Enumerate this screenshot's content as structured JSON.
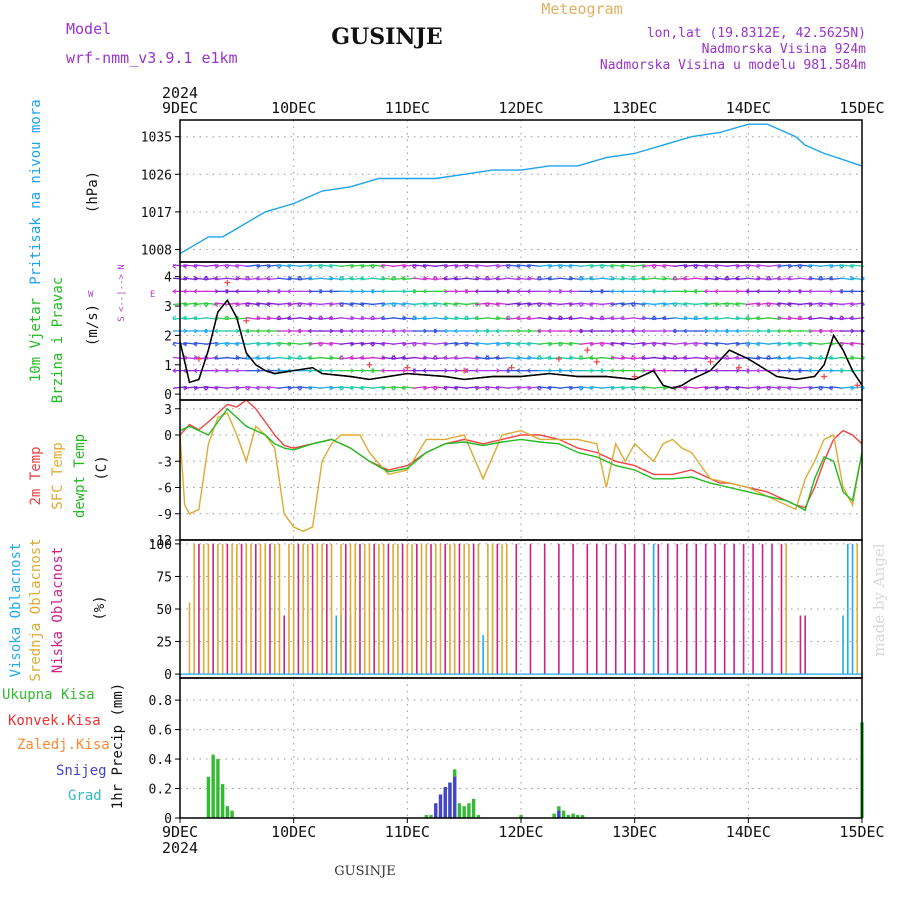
{
  "header": {
    "model_label": "Model",
    "model_name": "wrf-nmm_v3.9.1 e1km",
    "station_title": "GUSINJE",
    "meteogram_label": "Meteogram",
    "lonlat": "lon,lat (19.8312E, 42.5625N)",
    "elevation": "Nadmorska Visina 924m",
    "model_elevation": "Nadmorska Visina u modelu 981.584m",
    "credit": "made by Angel",
    "footer_title": "GUSINJE"
  },
  "time_axis": {
    "year": "2024",
    "ticks": [
      "9DEC",
      "10DEC",
      "11DEC",
      "12DEC",
      "13DEC",
      "14DEC",
      "15DEC"
    ],
    "range_hours": [
      0,
      144
    ]
  },
  "colors": {
    "pressure": "#1ca3ec",
    "wind_label": "#22bb22",
    "direction_label": "#aa44cc",
    "t2m": "#ee4444",
    "tsfc": "#ddaa33",
    "dewpt": "#22bb22",
    "high_cloud": "#22aaee",
    "mid_cloud": "#ddaa33",
    "low_cloud": "#cc2288",
    "total_precip": "#33bb33",
    "conv_precip": "#ee3333",
    "frozen_precip": "#ff8833",
    "snow": "#4444cc",
    "grad": "#33bbbb",
    "meta_text": "#9933cc",
    "meteogram_title": "#e0b060"
  },
  "chart_data": [
    {
      "type": "line",
      "panel": "pressure",
      "ylabel_lines": [
        "Pritisak na nivou mora",
        "(hPa)"
      ],
      "ylim": [
        1005,
        1039
      ],
      "yticks": [
        1008,
        1017,
        1026,
        1035
      ],
      "grid": true,
      "series": [
        {
          "x": [
            0,
            3,
            6,
            9,
            12,
            15,
            18,
            24,
            30,
            36,
            42,
            48,
            54,
            60,
            66,
            72,
            78,
            84,
            90,
            96,
            102,
            108,
            114,
            120,
            124,
            126,
            130,
            132,
            136,
            144
          ],
          "values": [
            1007,
            1009,
            1011,
            1011,
            1013,
            1015,
            1017,
            1019,
            1022,
            1023,
            1025,
            1025,
            1025,
            1026,
            1027,
            1027,
            1028,
            1028,
            1030,
            1031,
            1033,
            1035,
            1036,
            1038,
            1038,
            1037,
            1035,
            1033,
            1031,
            1028
          ]
        }
      ]
    },
    {
      "type": "line",
      "panel": "wind",
      "ylabel_lines": [
        "10m Vjetar",
        "Brzina i Pravac",
        "(m/s)"
      ],
      "direction_key": {
        "w": "W",
        "e": "E",
        "n": "N",
        "s": "S",
        "note": "<--|-->"
      },
      "ylim": [
        -0.2,
        4.5
      ],
      "yticks": [
        0,
        1,
        2,
        3,
        4
      ],
      "grid": true,
      "series": [
        {
          "x": [
            0,
            2,
            4,
            6,
            8,
            10,
            12,
            14,
            16,
            18,
            20,
            24,
            28,
            30,
            36,
            40,
            48,
            56,
            60,
            66,
            72,
            78,
            84,
            90,
            96,
            100,
            102,
            104,
            106,
            108,
            112,
            116,
            120,
            126,
            130,
            134,
            136,
            138,
            140,
            142,
            144
          ],
          "values": [
            1.8,
            0.4,
            0.5,
            1.5,
            2.8,
            3.2,
            2.6,
            1.4,
            1.0,
            0.8,
            0.7,
            0.8,
            0.9,
            0.7,
            0.6,
            0.5,
            0.7,
            0.6,
            0.5,
            0.6,
            0.6,
            0.7,
            0.6,
            0.6,
            0.5,
            0.8,
            0.3,
            0.2,
            0.3,
            0.5,
            0.8,
            1.5,
            1.2,
            0.6,
            0.5,
            0.6,
            1.0,
            2.0,
            1.5,
            0.8,
            0.3
          ]
        }
      ]
    },
    {
      "type": "line",
      "panel": "temperature",
      "ylabel_lines": [
        "2m Temp",
        "SFC Temp",
        "dewpt Temp",
        "(C)"
      ],
      "ylim": [
        -12,
        4
      ],
      "yticks": [
        -12,
        -9,
        -6,
        -3,
        0,
        3
      ],
      "grid": true,
      "series": [
        {
          "name": "2m Temp",
          "x": [
            0,
            2,
            4,
            6,
            8,
            10,
            12,
            14,
            16,
            18,
            20,
            22,
            24,
            28,
            32,
            36,
            40,
            44,
            48,
            52,
            56,
            60,
            64,
            68,
            72,
            76,
            80,
            84,
            88,
            92,
            96,
            100,
            104,
            108,
            112,
            114,
            116,
            120,
            124,
            128,
            130,
            132,
            134,
            136,
            138,
            140,
            142,
            144
          ],
          "values": [
            0,
            1.2,
            0.6,
            1.5,
            2.5,
            3.5,
            3.2,
            4,
            3,
            1.5,
            0,
            -1.2,
            -1.5,
            -1,
            -0.5,
            -1.5,
            -3,
            -4,
            -3.5,
            -2,
            -1,
            -0.5,
            -1,
            -0.5,
            0,
            0,
            -0.5,
            -1.5,
            -2,
            -3,
            -3.5,
            -4.5,
            -4.5,
            -4,
            -5,
            -5.5,
            -5.5,
            -6,
            -6.5,
            -7.5,
            -8,
            -8.3,
            -6,
            -3,
            -0.5,
            0.5,
            0,
            -1
          ]
        },
        {
          "name": "SFC Temp",
          "x": [
            0,
            1,
            2,
            4,
            6,
            8,
            10,
            12,
            14,
            16,
            18,
            20,
            22,
            24,
            26,
            28,
            30,
            32,
            34,
            36,
            38,
            40,
            44,
            48,
            52,
            56,
            60,
            64,
            68,
            72,
            76,
            80,
            84,
            88,
            90,
            92,
            94,
            96,
            98,
            100,
            102,
            104,
            106,
            108,
            112,
            116,
            120,
            124,
            128,
            130,
            132,
            134,
            136,
            138,
            140,
            142,
            144
          ],
          "values": [
            0,
            -8,
            -9,
            -8.5,
            -1,
            2,
            2.5,
            0,
            -3,
            1,
            0,
            -1.5,
            -9,
            -10.5,
            -11,
            -10.5,
            -3,
            -1,
            0,
            0,
            0,
            -2,
            -4.5,
            -4,
            -0.5,
            -0.5,
            0,
            -5,
            0,
            0.5,
            -0.5,
            -0.5,
            -0.5,
            -1,
            -6,
            -1,
            -3,
            -1,
            -2,
            -3,
            -1,
            -0.5,
            -1.5,
            -2,
            -5,
            -5.5,
            -6,
            -7,
            -8,
            -8.5,
            -5,
            -3,
            -0.5,
            0,
            -6,
            -8,
            -2
          ]
        },
        {
          "name": "dewpt Temp",
          "x": [
            0,
            2,
            4,
            6,
            8,
            10,
            12,
            14,
            16,
            18,
            20,
            22,
            24,
            28,
            32,
            36,
            40,
            44,
            48,
            52,
            56,
            60,
            64,
            68,
            72,
            76,
            80,
            84,
            88,
            92,
            96,
            100,
            104,
            108,
            112,
            116,
            120,
            124,
            128,
            130,
            132,
            134,
            136,
            138,
            140,
            142,
            144
          ],
          "values": [
            0.5,
            1,
            0.5,
            0,
            1.5,
            3,
            2,
            1,
            0.5,
            0,
            -1,
            -1.5,
            -1.7,
            -1,
            -0.5,
            -1.5,
            -3,
            -4.2,
            -3.8,
            -2,
            -1,
            -0.8,
            -1.2,
            -0.8,
            -0.5,
            -0.8,
            -1,
            -2,
            -2.5,
            -3.5,
            -4,
            -5,
            -5,
            -4.8,
            -5.5,
            -6,
            -6.5,
            -7,
            -7.5,
            -8,
            -8.6,
            -5,
            -2.5,
            -3,
            -6.5,
            -7.5,
            -2
          ]
        }
      ]
    },
    {
      "type": "bar",
      "panel": "cloud",
      "ylabel_lines": [
        "Visoka Oblacnost",
        "Srednja Oblacnost",
        "Niska Oblacnost",
        "(%)"
      ],
      "ylim": [
        -3,
        103
      ],
      "yticks": [
        0,
        25,
        50,
        75,
        100
      ],
      "grid": true,
      "series": [
        {
          "name": "Visoka Oblacnost",
          "x": [
            33,
            34,
            35,
            36,
            63,
            64,
            100,
            140,
            141,
            142
          ],
          "values": [
            45,
            45,
            45,
            45,
            100,
            30,
            100,
            45,
            100,
            100
          ]
        },
        {
          "name": "Srednja Oblacnost",
          "x": [
            2,
            3,
            5,
            6,
            8,
            9,
            11,
            12,
            14,
            15,
            17,
            18,
            20,
            21,
            23,
            24,
            26,
            27,
            29,
            30,
            32,
            34,
            36,
            37,
            39,
            40,
            42,
            43,
            45,
            46,
            48,
            49,
            51,
            52,
            54,
            55,
            57,
            58,
            60,
            61,
            63,
            65,
            66,
            68,
            69,
            128,
            143
          ],
          "values": [
            55,
            100,
            100,
            100,
            100,
            100,
            100,
            100,
            100,
            100,
            100,
            100,
            100,
            100,
            100,
            100,
            100,
            100,
            100,
            100,
            100,
            100,
            100,
            100,
            100,
            100,
            100,
            100,
            100,
            100,
            100,
            100,
            100,
            100,
            100,
            100,
            100,
            100,
            100,
            100,
            100,
            100,
            100,
            100,
            100,
            100,
            100
          ]
        },
        {
          "name": "Niska Oblacnost",
          "x": [
            4,
            7,
            10,
            13,
            16,
            19,
            22,
            25,
            28,
            31,
            35,
            38,
            41,
            44,
            47,
            50,
            53,
            56,
            59,
            62,
            67,
            71,
            74,
            77,
            80,
            83,
            86,
            88,
            90,
            92,
            94,
            96,
            98,
            101,
            103,
            105,
            107,
            109,
            111,
            113,
            115,
            117,
            119,
            121,
            123,
            125,
            127,
            131,
            132
          ],
          "values": [
            100,
            100,
            100,
            100,
            100,
            100,
            45,
            100,
            100,
            100,
            100,
            100,
            100,
            100,
            100,
            100,
            100,
            100,
            100,
            100,
            100,
            100,
            100,
            100,
            100,
            100,
            100,
            100,
            100,
            100,
            100,
            100,
            100,
            100,
            100,
            100,
            100,
            100,
            100,
            100,
            100,
            100,
            100,
            100,
            100,
            100,
            100,
            45,
            45
          ]
        }
      ]
    },
    {
      "type": "bar",
      "panel": "precip",
      "ylabel_lines": [
        "1hr Precip (mm)"
      ],
      "legend": [
        "Ukupna Kisa",
        "Konvek.Kisa",
        "Zaledj.Kisa",
        "Snijeg",
        "Grad"
      ],
      "ylim": [
        0,
        0.95
      ],
      "yticks": [
        0,
        0.2,
        0.4,
        0.6,
        0.8
      ],
      "grid": true,
      "series": [
        {
          "name": "Ukupna Kisa",
          "x": [
            6,
            7,
            8,
            9,
            10,
            11,
            52,
            53,
            54,
            55,
            56,
            57,
            58,
            59,
            60,
            61,
            62,
            63,
            72,
            79,
            80,
            81,
            82,
            83,
            84,
            85,
            144
          ],
          "values": [
            0.28,
            0.43,
            0.4,
            0.23,
            0.08,
            0.05,
            0.02,
            0.02,
            0.03,
            0.02,
            0.21,
            0.24,
            0.33,
            0.1,
            0.08,
            0.1,
            0.13,
            0.02,
            0.02,
            0.03,
            0.08,
            0.05,
            0.02,
            0.03,
            0.02,
            0.02,
            0.65
          ]
        },
        {
          "name": "Snijeg",
          "x": [
            54,
            55,
            56,
            57,
            58,
            80
          ],
          "values": [
            0.1,
            0.16,
            0.21,
            0.24,
            0.28,
            0.05
          ]
        }
      ]
    }
  ]
}
